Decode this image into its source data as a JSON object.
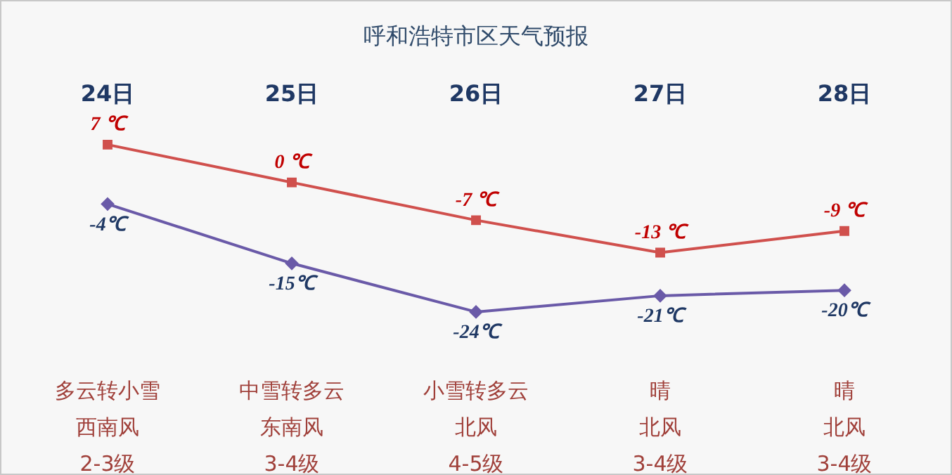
{
  "chart_data": {
    "type": "line",
    "title": "呼和浩特市区天气预报",
    "categories": [
      "24日",
      "25日",
      "26日",
      "27日",
      "28日"
    ],
    "series": [
      {
        "color": "#d0504d",
        "marker": "square",
        "values": [
          7,
          0,
          -7,
          -13,
          -9
        ],
        "value_labels": [
          "7 ℃",
          "0 ℃",
          "-7 ℃",
          "-13 ℃",
          "-9 ℃"
        ]
      },
      {
        "color": "#6a5aa8",
        "marker": "diamond",
        "values": [
          -4,
          -15,
          -24,
          -21,
          -20
        ],
        "value_labels": [
          "-4℃",
          "-15℃",
          "-24℃",
          "-21℃",
          "-20℃"
        ]
      }
    ],
    "annotations": [
      "多云转小雪",
      "中雪转多云",
      "小雪转多云",
      "晴",
      "晴",
      "西南风",
      "东南风",
      "北风",
      "北风",
      "北风",
      "2-3级",
      "3-4级",
      "4-5级",
      "3-4级",
      "3-4级"
    ],
    "legend": false,
    "grid": false
  }
}
